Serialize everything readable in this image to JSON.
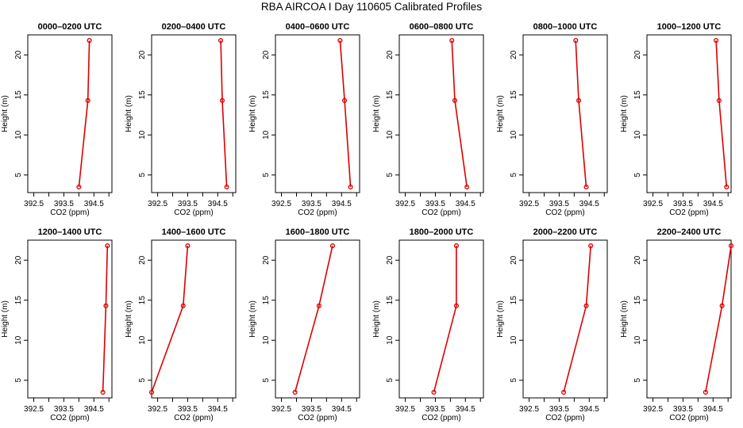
{
  "figure": {
    "title": "RBA AIRCOA I  Day 110605  Calibrated Profiles"
  },
  "chart_data": [
    {
      "type": "line",
      "title": "0000–0200 UTC",
      "xlabel": "CO2 (ppm)",
      "ylabel": "Height (m)",
      "x": [
        394.0,
        394.3,
        394.35
      ],
      "y": [
        3.5,
        14.3,
        21.8
      ],
      "xlim": [
        392.3,
        395.1
      ],
      "ylim": [
        2.8,
        22.5
      ],
      "xticks": [
        "392.5",
        "393.5",
        "394.5"
      ],
      "yticks": [
        "5",
        "10",
        "15",
        "20"
      ],
      "color": "#dd0000"
    },
    {
      "type": "line",
      "title": "0200–0400 UTC",
      "xlabel": "CO2 (ppm)",
      "ylabel": "Height (m)",
      "x": [
        394.8,
        394.65,
        394.6
      ],
      "y": [
        3.5,
        14.3,
        21.8
      ],
      "xlim": [
        392.3,
        395.1
      ],
      "ylim": [
        2.8,
        22.5
      ],
      "xticks": [
        "392.5",
        "393.5",
        "394.5"
      ],
      "yticks": [
        "5",
        "10",
        "15",
        "20"
      ],
      "color": "#dd0000"
    },
    {
      "type": "line",
      "title": "0400–0600 UTC",
      "xlabel": "CO2 (ppm)",
      "ylabel": "Height (m)",
      "x": [
        394.8,
        394.6,
        394.45
      ],
      "y": [
        3.5,
        14.3,
        21.8
      ],
      "xlim": [
        392.3,
        395.1
      ],
      "ylim": [
        2.8,
        22.5
      ],
      "xticks": [
        "392.5",
        "393.5",
        "394.5"
      ],
      "yticks": [
        "5",
        "10",
        "15",
        "20"
      ],
      "color": "#dd0000"
    },
    {
      "type": "line",
      "title": "0600–0800 UTC",
      "xlabel": "CO2 (ppm)",
      "ylabel": "Height (m)",
      "x": [
        394.55,
        394.15,
        394.05
      ],
      "y": [
        3.5,
        14.3,
        21.8
      ],
      "xlim": [
        392.3,
        395.1
      ],
      "ylim": [
        2.8,
        22.5
      ],
      "xticks": [
        "392.5",
        "393.5",
        "394.5"
      ],
      "yticks": [
        "5",
        "10",
        "15",
        "20"
      ],
      "color": "#dd0000"
    },
    {
      "type": "line",
      "title": "0800–1000 UTC",
      "xlabel": "CO2 (ppm)",
      "ylabel": "Height (m)",
      "x": [
        394.4,
        394.15,
        394.05
      ],
      "y": [
        3.5,
        14.3,
        21.8
      ],
      "xlim": [
        392.3,
        395.1
      ],
      "ylim": [
        2.8,
        22.5
      ],
      "xticks": [
        "392.5",
        "393.5",
        "394.5"
      ],
      "yticks": [
        "5",
        "10",
        "15",
        "20"
      ],
      "color": "#dd0000"
    },
    {
      "type": "line",
      "title": "1000–1200 UTC",
      "xlabel": "CO2 (ppm)",
      "ylabel": "Height (m)",
      "x": [
        394.95,
        394.7,
        394.6
      ],
      "y": [
        3.5,
        14.3,
        21.8
      ],
      "xlim": [
        392.3,
        395.1
      ],
      "ylim": [
        2.8,
        22.5
      ],
      "xticks": [
        "392.5",
        "393.5",
        "394.5"
      ],
      "yticks": [
        "5",
        "10",
        "15",
        "20"
      ],
      "color": "#dd0000"
    },
    {
      "type": "line",
      "title": "1200–1400 UTC",
      "xlabel": "CO2 (ppm)",
      "ylabel": "Height (m)",
      "x": [
        394.8,
        394.9,
        394.95
      ],
      "y": [
        3.5,
        14.3,
        21.8
      ],
      "xlim": [
        392.3,
        395.1
      ],
      "ylim": [
        2.8,
        22.5
      ],
      "xticks": [
        "392.5",
        "393.5",
        "394.5"
      ],
      "yticks": [
        "5",
        "10",
        "15",
        "20"
      ],
      "color": "#dd0000"
    },
    {
      "type": "line",
      "title": "1400–1600 UTC",
      "xlabel": "CO2 (ppm)",
      "ylabel": "Height (m)",
      "x": [
        392.3,
        393.35,
        393.5
      ],
      "y": [
        3.5,
        14.3,
        21.8
      ],
      "xlim": [
        392.3,
        395.1
      ],
      "ylim": [
        2.8,
        22.5
      ],
      "xticks": [
        "392.5",
        "393.5",
        "394.5"
      ],
      "yticks": [
        "5",
        "10",
        "15",
        "20"
      ],
      "color": "#dd0000"
    },
    {
      "type": "line",
      "title": "1600–1800 UTC",
      "xlabel": "CO2 (ppm)",
      "ylabel": "Height (m)",
      "x": [
        392.95,
        393.75,
        394.2
      ],
      "y": [
        3.5,
        14.3,
        21.8
      ],
      "xlim": [
        392.3,
        395.1
      ],
      "ylim": [
        2.8,
        22.5
      ],
      "xticks": [
        "392.5",
        "393.5",
        "394.5"
      ],
      "yticks": [
        "5",
        "10",
        "15",
        "20"
      ],
      "color": "#dd0000"
    },
    {
      "type": "line",
      "title": "1800–2000 UTC",
      "xlabel": "CO2 (ppm)",
      "ylabel": "Height (m)",
      "x": [
        393.45,
        394.2,
        394.2
      ],
      "y": [
        3.5,
        14.3,
        21.8
      ],
      "xlim": [
        392.3,
        395.1
      ],
      "ylim": [
        2.8,
        22.5
      ],
      "xticks": [
        "392.5",
        "393.5",
        "394.5"
      ],
      "yticks": [
        "5",
        "10",
        "15",
        "20"
      ],
      "color": "#dd0000"
    },
    {
      "type": "line",
      "title": "2000–2200 UTC",
      "xlabel": "CO2 (ppm)",
      "ylabel": "Height (m)",
      "x": [
        393.65,
        394.4,
        394.55
      ],
      "y": [
        3.5,
        14.3,
        21.8
      ],
      "xlim": [
        392.3,
        395.1
      ],
      "ylim": [
        2.8,
        22.5
      ],
      "xticks": [
        "392.5",
        "393.5",
        "394.5"
      ],
      "yticks": [
        "5",
        "10",
        "15",
        "20"
      ],
      "color": "#dd0000"
    },
    {
      "type": "line",
      "title": "2200–2400 UTC",
      "xlabel": "CO2 (ppm)",
      "ylabel": "Height (m)",
      "x": [
        394.25,
        394.8,
        395.1
      ],
      "y": [
        3.5,
        14.3,
        21.8
      ],
      "xlim": [
        392.3,
        395.1
      ],
      "ylim": [
        2.8,
        22.5
      ],
      "xticks": [
        "392.5",
        "393.5",
        "394.5"
      ],
      "yticks": [
        "5",
        "10",
        "15",
        "20"
      ],
      "color": "#dd0000"
    }
  ]
}
